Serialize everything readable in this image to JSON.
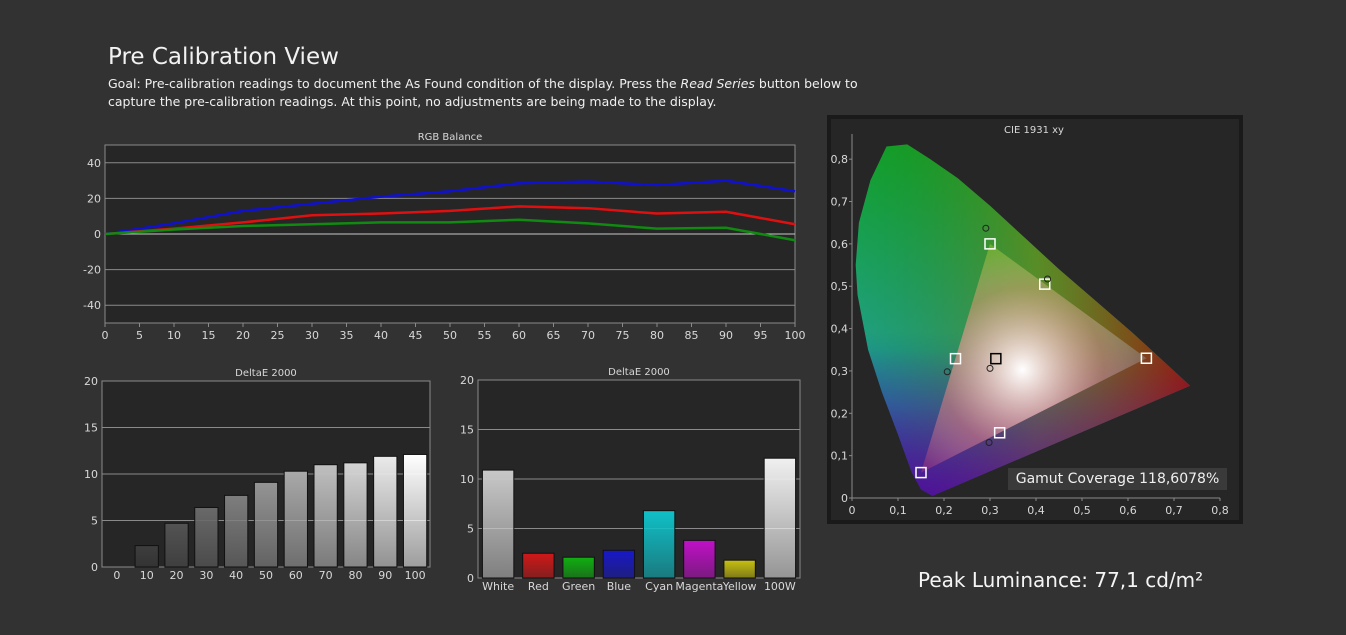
{
  "page": {
    "title": "Pre Calibration View",
    "goal_prefix": "Goal: Pre-calibration readings to document the As Found condition of the display. Press the ",
    "goal_italic": "Read Series",
    "goal_suffix": " button below to capture the pre-calibration readings. At this point, no adjustments are being made to the display.",
    "peak_luminance": "Peak Luminance: 77,1 cd/m²",
    "gamut_coverage": "Gamut Coverage 118,6078%"
  },
  "colors": {
    "red": "#e01010",
    "green": "#108a10",
    "blue": "#1010d0",
    "background": "#323232",
    "plot_bg": "#262626"
  },
  "chart_data": [
    {
      "type": "line",
      "title": "RGB Balance",
      "xlabel": "",
      "ylabel": "",
      "x": [
        0,
        10,
        20,
        30,
        40,
        50,
        60,
        70,
        80,
        90,
        100
      ],
      "xticks": [
        "0",
        "5",
        "10",
        "15",
        "20",
        "25",
        "30",
        "35",
        "40",
        "45",
        "50",
        "55",
        "60",
        "65",
        "70",
        "75",
        "80",
        "85",
        "90",
        "95",
        "100"
      ],
      "yticks": [
        "40",
        "20",
        "0",
        "-20",
        "-40"
      ],
      "xlim": [
        0,
        100
      ],
      "ylim": [
        -50,
        50
      ],
      "grid": true,
      "series": [
        {
          "color": "#1010d0",
          "values": [
            0,
            6,
            13,
            17,
            21,
            24,
            28.5,
            29.5,
            27.5,
            30,
            24
          ]
        },
        {
          "color": "#e01010",
          "values": [
            0,
            3,
            6.5,
            10.5,
            11.5,
            13,
            15.5,
            14.5,
            11.5,
            12.5,
            5.5
          ]
        },
        {
          "color": "#108a10",
          "values": [
            0,
            2.5,
            4.5,
            5.5,
            6.5,
            6.5,
            8,
            6,
            3,
            3.5,
            -3.5
          ]
        }
      ]
    },
    {
      "type": "bar",
      "title": "DeltaE 2000",
      "categories": [
        "0",
        "10",
        "20",
        "30",
        "40",
        "50",
        "60",
        "70",
        "80",
        "90",
        "100"
      ],
      "values": [
        0,
        2.3,
        4.7,
        6.4,
        7.7,
        9.1,
        10.3,
        11.0,
        11.2,
        11.9,
        12.1
      ],
      "ylim": [
        0,
        20
      ],
      "yticks": [
        "20",
        "15",
        "10",
        "5",
        "0"
      ]
    },
    {
      "type": "bar",
      "title": "DeltaE 2000",
      "categories": [
        "White",
        "Red",
        "Green",
        "Blue",
        "Cyan",
        "Magenta",
        "Yellow",
        "100W"
      ],
      "values": [
        10.9,
        2.5,
        2.1,
        2.8,
        6.8,
        3.8,
        1.8,
        12.1
      ],
      "bar_colors": [
        "#c8c8c8",
        "#d01818",
        "#10b010",
        "#1818c8",
        "#10c0c8",
        "#c010c8",
        "#c8c010",
        "#f0f0f0"
      ],
      "ylim": [
        0,
        20
      ],
      "yticks": [
        "20",
        "15",
        "10",
        "5",
        "0"
      ]
    },
    {
      "type": "scatter",
      "title": "CIE 1931 xy",
      "xlim": [
        0,
        0.8
      ],
      "ylim": [
        0,
        0.85
      ],
      "xticks": [
        "0",
        "0,1",
        "0,2",
        "0,3",
        "0,4",
        "0,5",
        "0,6",
        "0,7",
        "0,8"
      ],
      "yticks": [
        "0,8",
        "0,7",
        "0,6",
        "0,5",
        "0,4",
        "0,3",
        "0,2",
        "0,1",
        "0"
      ],
      "target_points": [
        {
          "x": 0.64,
          "y": 0.33
        },
        {
          "x": 0.3,
          "y": 0.6
        },
        {
          "x": 0.15,
          "y": 0.06
        },
        {
          "x": 0.225,
          "y": 0.329
        },
        {
          "x": 0.321,
          "y": 0.154
        },
        {
          "x": 0.419,
          "y": 0.505
        },
        {
          "x": 0.3127,
          "y": 0.329
        }
      ],
      "measured_points": [
        {
          "x": 0.291,
          "y": 0.637
        },
        {
          "x": 0.425,
          "y": 0.517
        },
        {
          "x": 0.207,
          "y": 0.298
        },
        {
          "x": 0.3,
          "y": 0.306
        },
        {
          "x": 0.298,
          "y": 0.131
        }
      ]
    }
  ]
}
